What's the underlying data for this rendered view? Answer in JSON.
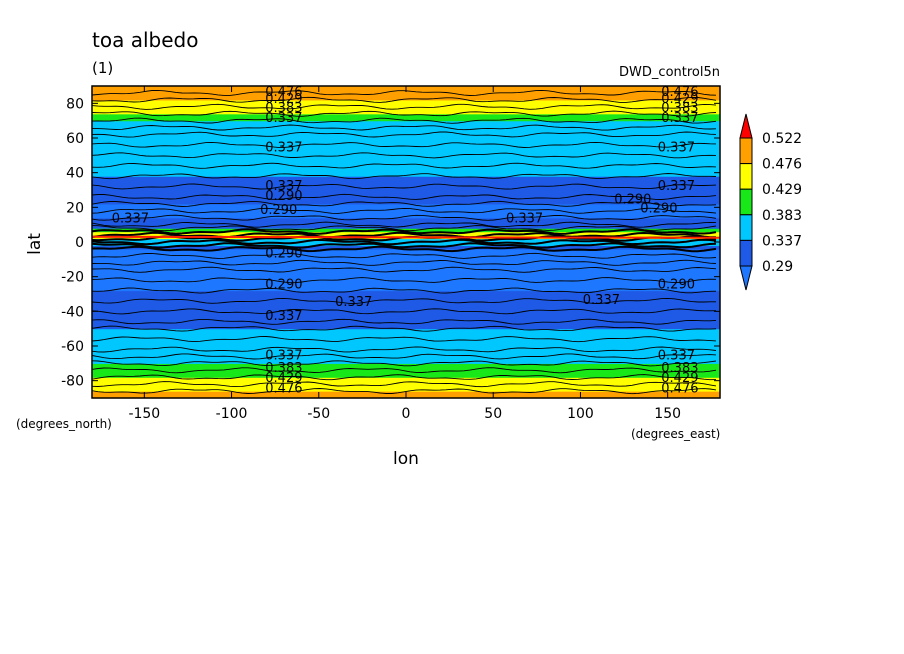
{
  "chart_data": {
    "type": "heatmap",
    "title": "toa albedo",
    "subtitle": "(1)",
    "run_label": "DWD_control5n",
    "xlabel": "lon",
    "ylabel": "lat",
    "x_units": "(degrees_east)",
    "y_units": "(degrees_north)",
    "xlim": [
      -180,
      180
    ],
    "ylim": [
      -90,
      90
    ],
    "x_ticks": [
      -150,
      -100,
      -50,
      0,
      50,
      100,
      150
    ],
    "y_ticks": [
      -80,
      -60,
      -40,
      -20,
      0,
      20,
      40,
      60,
      80
    ],
    "colorbar": {
      "levels": [
        "0.29",
        "0.337",
        "0.383",
        "0.429",
        "0.476",
        "0.522"
      ],
      "colors": [
        "#1e78ff",
        "#1e5ae6",
        "#00c8ff",
        "#18e818",
        "#ffff00",
        "#ffa000",
        "#ff0000"
      ]
    },
    "zonal_profile": {
      "lat": [
        -90,
        -86,
        -82,
        -78,
        -74,
        -70,
        -66,
        -62,
        -56,
        -50,
        -46,
        -40,
        -34,
        -28,
        -22,
        -16,
        -12,
        -8,
        -4,
        -2,
        0,
        2,
        4,
        6,
        8,
        10,
        14,
        18,
        22,
        26,
        32,
        38,
        44,
        50,
        56,
        62,
        66,
        70,
        74,
        78,
        82,
        86,
        90
      ],
      "albedo": [
        0.5,
        0.485,
        0.46,
        0.44,
        0.41,
        0.38,
        0.355,
        0.345,
        0.35,
        0.34,
        0.325,
        0.33,
        0.315,
        0.295,
        0.27,
        0.255,
        0.25,
        0.26,
        0.3,
        0.33,
        0.36,
        0.4,
        0.52,
        0.42,
        0.35,
        0.32,
        0.29,
        0.28,
        0.285,
        0.3,
        0.32,
        0.335,
        0.345,
        0.34,
        0.335,
        0.35,
        0.37,
        0.39,
        0.42,
        0.45,
        0.47,
        0.49,
        0.5
      ]
    },
    "contour_labels": [
      {
        "text": "0.476",
        "lon": -70,
        "lat": 87
      },
      {
        "text": "0.429",
        "lon": -70,
        "lat": 83
      },
      {
        "text": "0.383",
        "lon": -70,
        "lat": 78
      },
      {
        "text": "0.337",
        "lon": -70,
        "lat": 72
      },
      {
        "text": "0.337",
        "lon": -70,
        "lat": 55
      },
      {
        "text": "0.337",
        "lon": -70,
        "lat": 33
      },
      {
        "text": "0.290",
        "lon": -70,
        "lat": 27
      },
      {
        "text": "0.290",
        "lon": -73,
        "lat": 19
      },
      {
        "text": "0.337",
        "lon": -158,
        "lat": 14
      },
      {
        "text": "0.290",
        "lon": -70,
        "lat": -6
      },
      {
        "text": "0.290",
        "lon": -70,
        "lat": -24
      },
      {
        "text": "0.337",
        "lon": -30,
        "lat": -34
      },
      {
        "text": "0.337",
        "lon": -70,
        "lat": -42
      },
      {
        "text": "0.337",
        "lon": -70,
        "lat": -65
      },
      {
        "text": "0.383",
        "lon": -70,
        "lat": -72
      },
      {
        "text": "0.429",
        "lon": -70,
        "lat": -78
      },
      {
        "text": "0.476",
        "lon": -70,
        "lat": -84
      },
      {
        "text": "0.476",
        "lon": 157,
        "lat": 87
      },
      {
        "text": "0.429",
        "lon": 157,
        "lat": 83
      },
      {
        "text": "0.383",
        "lon": 157,
        "lat": 78
      },
      {
        "text": "0.337",
        "lon": 157,
        "lat": 72
      },
      {
        "text": "0.337",
        "lon": 155,
        "lat": 55
      },
      {
        "text": "0.337",
        "lon": 155,
        "lat": 33
      },
      {
        "text": "0.290",
        "lon": 130,
        "lat": 25
      },
      {
        "text": "0.290",
        "lon": 145,
        "lat": 20
      },
      {
        "text": "0.337",
        "lon": 68,
        "lat": 14
      },
      {
        "text": "0.290",
        "lon": 155,
        "lat": -24
      },
      {
        "text": "0.337",
        "lon": 112,
        "lat": -33
      },
      {
        "text": "0.337",
        "lon": 155,
        "lat": -65
      },
      {
        "text": "0.383",
        "lon": 157,
        "lat": -72
      },
      {
        "text": "0.429",
        "lon": 157,
        "lat": -78
      },
      {
        "text": "0.476",
        "lon": 157,
        "lat": -84
      }
    ],
    "grid": false,
    "legend": "right"
  }
}
